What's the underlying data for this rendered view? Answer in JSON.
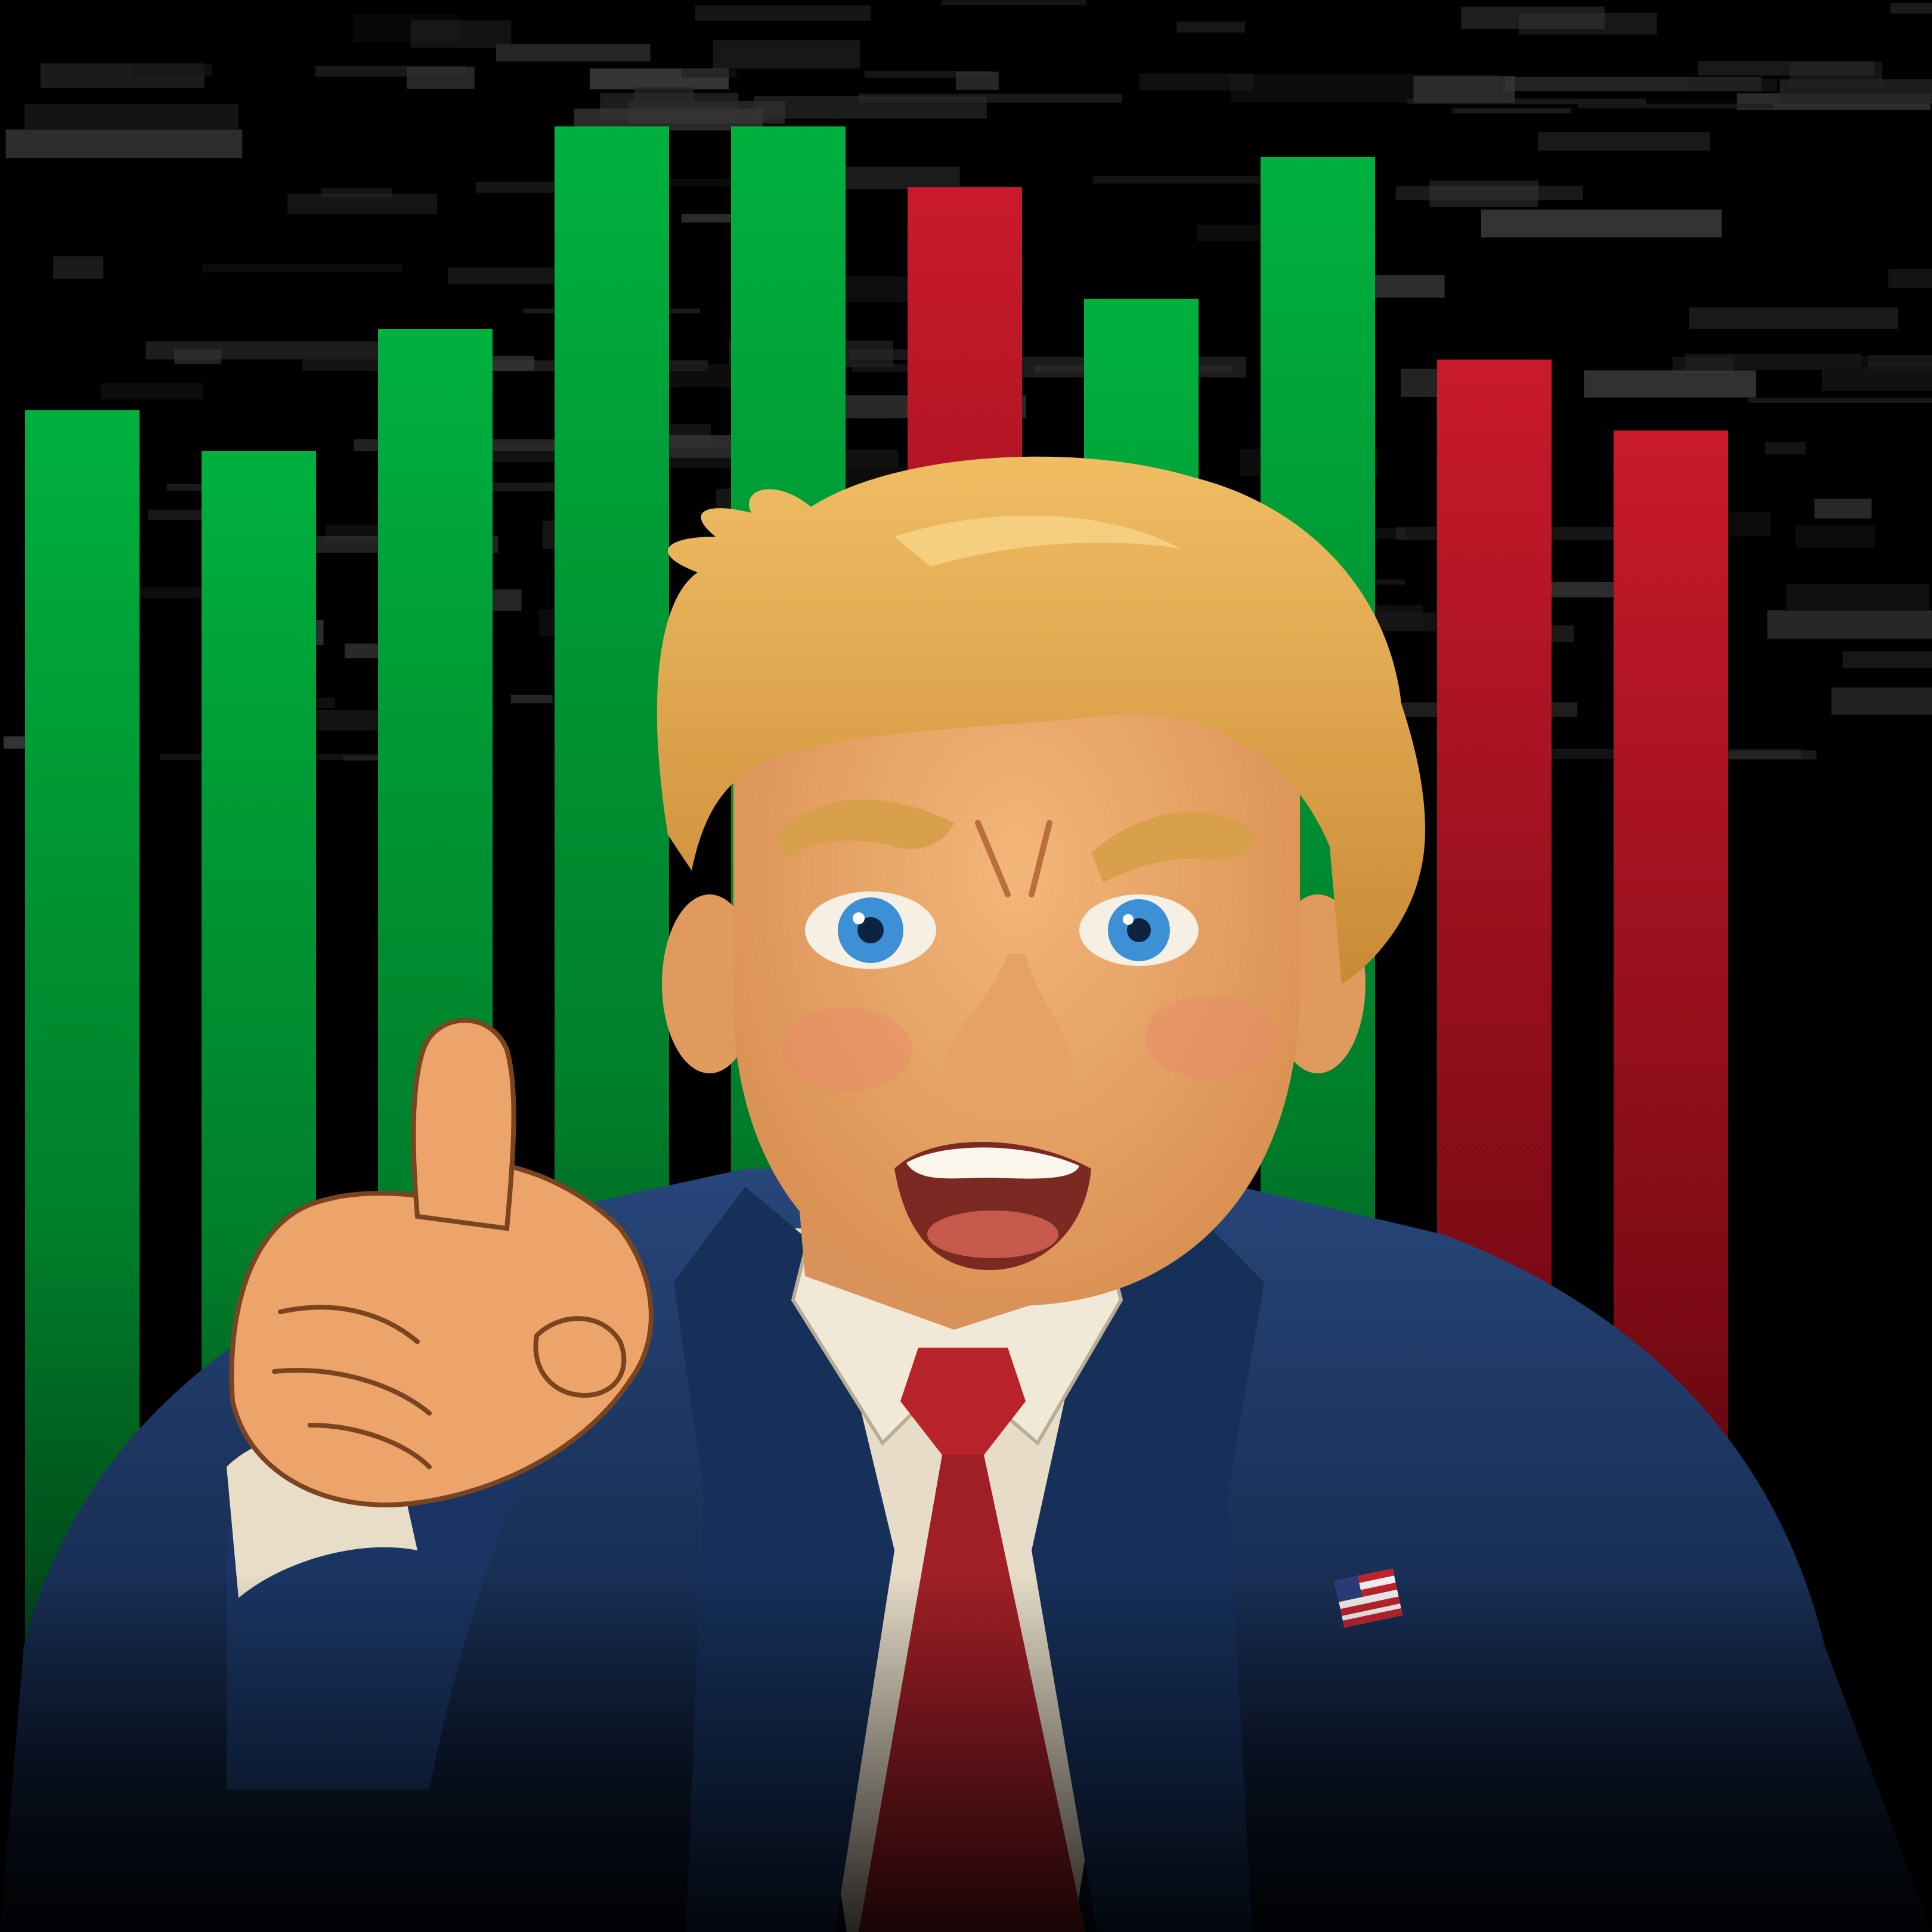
{
  "scene": {
    "subject": "cartoon-man-pointing",
    "background": "dark-glitch-market-screen",
    "colors": {
      "background": "#000000",
      "bar_up": "#00a83a",
      "bar_down": "#c8192a",
      "suit": "#1f3a66",
      "tie": "#b8232b",
      "hair": "#e0a64e",
      "skin": "#eeab6d",
      "shirt": "#e6dcc8",
      "eyes": "#3d8fd6"
    }
  },
  "bars": [
    {
      "direction": "up",
      "level": 0.72
    },
    {
      "direction": "up",
      "level": 0.68
    },
    {
      "direction": "up",
      "level": 0.8
    },
    {
      "direction": "up",
      "level": 1.0
    },
    {
      "direction": "up",
      "level": 1.0
    },
    {
      "direction": "down",
      "level": 0.94
    },
    {
      "direction": "up",
      "level": 0.83
    },
    {
      "direction": "up",
      "level": 0.97
    },
    {
      "direction": "down",
      "level": 0.77
    },
    {
      "direction": "down",
      "level": 0.7
    }
  ]
}
